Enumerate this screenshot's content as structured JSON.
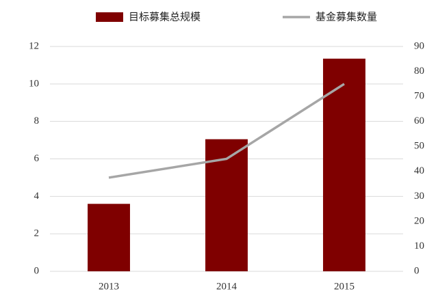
{
  "chart_data": {
    "type": "bar",
    "categories": [
      "2013",
      "2014",
      "2015"
    ],
    "series": [
      {
        "name": "目标募集总规模",
        "type": "bar",
        "color": "#7f0000",
        "values": [
          3.6,
          7.05,
          11.35
        ]
      },
      {
        "name": "基金募集数量",
        "type": "line",
        "color": "#a6a6a6",
        "axis": "y2",
        "values": [
          37.5,
          45,
          75
        ]
      }
    ],
    "ylim": [
      0,
      12
    ],
    "yticks": [
      0,
      2,
      4,
      6,
      8,
      10,
      12
    ],
    "y2lim": [
      0,
      90
    ],
    "y2ticks": [
      0,
      10,
      20,
      30,
      40,
      50,
      60,
      70,
      80,
      90
    ],
    "grid": true
  }
}
